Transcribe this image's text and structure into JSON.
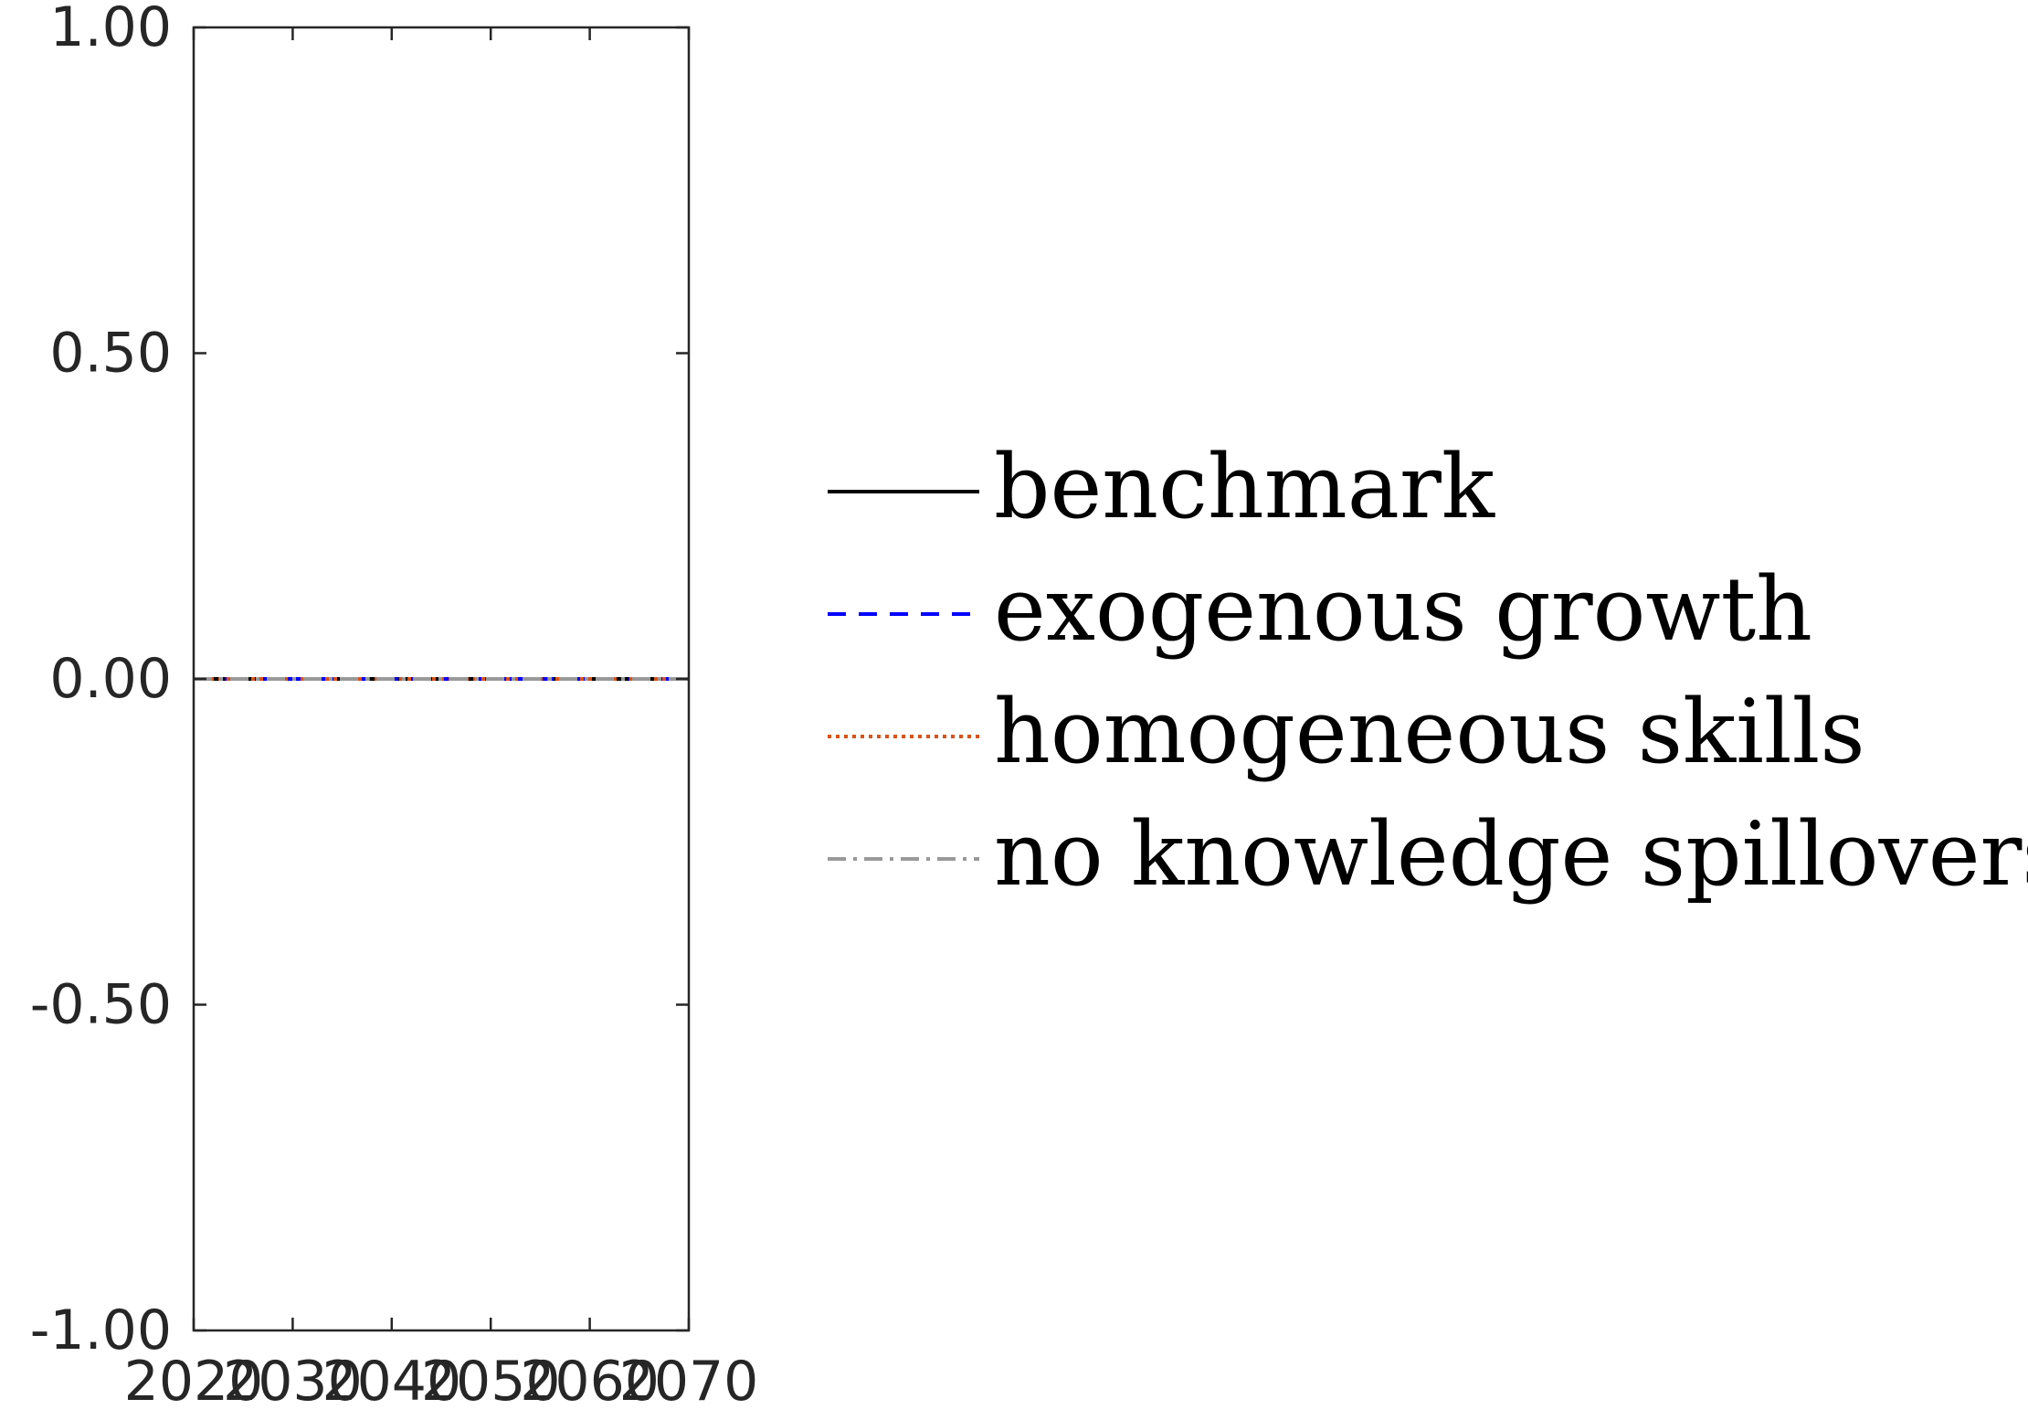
{
  "chart_data": {
    "type": "line",
    "title": "",
    "xlabel": "",
    "ylabel": "",
    "xlim": [
      2020,
      2070
    ],
    "ylim": [
      -1,
      1
    ],
    "x_ticks": [
      2020,
      2030,
      2040,
      2050,
      2060,
      2070
    ],
    "x_tick_labels": [
      "2020",
      "2030",
      "2040",
      "2050",
      "2060",
      "2070"
    ],
    "y_ticks": [
      -1,
      -0.5,
      0,
      0.5,
      1
    ],
    "y_tick_labels": [
      "-1.00",
      "-0.50",
      "0.00",
      "0.50",
      "1.00"
    ],
    "grid": false,
    "legend_position": "right, outside plot",
    "x": [
      2020,
      2025,
      2030,
      2035,
      2040,
      2045,
      2050,
      2055,
      2060,
      2065,
      2070
    ],
    "series": [
      {
        "name": "benchmark",
        "color": "#000000",
        "style": "solid",
        "values": [
          0,
          0,
          0,
          0,
          0,
          0,
          0,
          0,
          0,
          0,
          0
        ]
      },
      {
        "name": "exogenous growth",
        "color": "#0000ff",
        "style": "dashed",
        "values": [
          0,
          0,
          0,
          0,
          0,
          0,
          0,
          0,
          0,
          0,
          0
        ]
      },
      {
        "name": "homogeneous skills",
        "color": "#d95319",
        "style": "dotted",
        "values": [
          0,
          0,
          0,
          0,
          0,
          0,
          0,
          0,
          0,
          0,
          0
        ]
      },
      {
        "name": "no knowledge spillovers",
        "color": "#999999",
        "style": "dashdot",
        "values": [
          0,
          0,
          0,
          0,
          0,
          0,
          0,
          0,
          0,
          0,
          0
        ]
      }
    ]
  }
}
